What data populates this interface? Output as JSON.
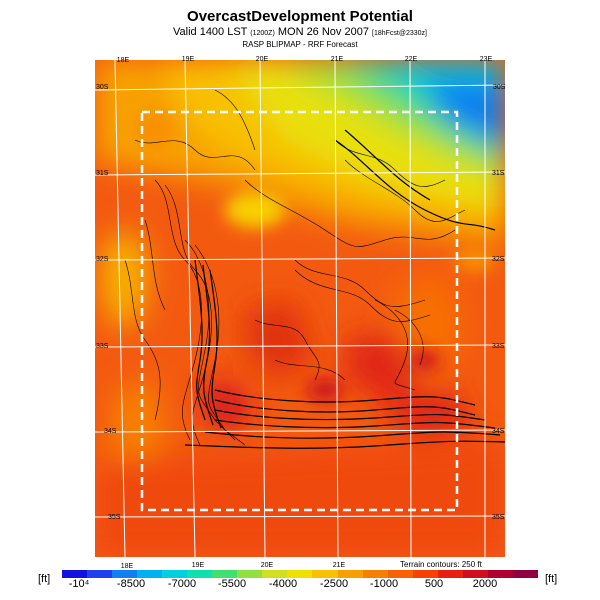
{
  "header": {
    "title": "OvercastDevelopment Potential",
    "valid_prefix": "Valid 1400 LST",
    "valid_mid": "(1200Z)",
    "valid_date": "MON 26 Nov 2007",
    "valid_run": "[18hFcst@2330z]",
    "subtitle": "RASP BLIPMAP - RRF Forecast"
  },
  "map": {
    "lon_labels_top": [
      "18E",
      "19E",
      "20E",
      "21E",
      "22E",
      "23E"
    ],
    "lon_labels_bottom": [
      "18E",
      "19E",
      "20E",
      "21E"
    ],
    "lat_labels_left": [
      "30S",
      "31S",
      "32S",
      "33S",
      "34S",
      "35S"
    ],
    "lat_labels_right": [
      "30S",
      "31S",
      "32S",
      "33S",
      "34S",
      "35S"
    ],
    "terrain_note": "Terrain contours: 250 ft"
  },
  "legend": {
    "unit_left": "[ft]",
    "unit_right": "[ft]",
    "ticks": [
      "-10⁴",
      "-8500",
      "-7000",
      "-5500",
      "-4000",
      "-2500",
      "-1000",
      "500",
      "2000"
    ],
    "colors": [
      "#1010e0",
      "#2040f0",
      "#1080f0",
      "#00b0f0",
      "#00d0e0",
      "#10e0b0",
      "#40e070",
      "#90e040",
      "#d0e020",
      "#f0e000",
      "#f8c000",
      "#f8a000",
      "#f88000",
      "#f86000",
      "#f84000",
      "#e82010",
      "#d01020",
      "#b00030",
      "#900040"
    ]
  },
  "colors": {
    "box": "#ffffff",
    "grid": "#ffffff",
    "contour": "#000000"
  }
}
